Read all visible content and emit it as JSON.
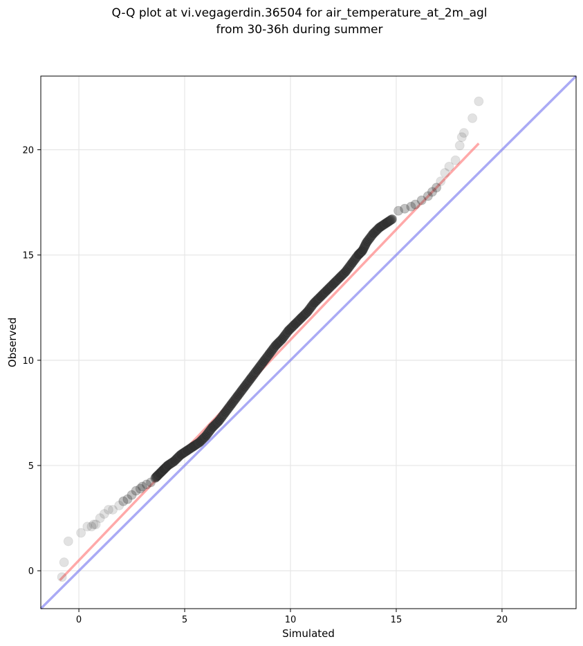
{
  "chart_data": {
    "type": "scatter",
    "title_lines": [
      "Q-Q plot at vi.vegagerdin.36504 for air_temperature_at_2m_agl",
      "from 30-36h during summer"
    ],
    "xlabel": "Simulated",
    "ylabel": "Observed",
    "xlim": [
      -1.8,
      23.5
    ],
    "ylim": [
      -1.8,
      23.5
    ],
    "xticks": [
      0,
      5,
      10,
      15,
      20
    ],
    "yticks": [
      0,
      5,
      10,
      15,
      20
    ],
    "grid": true,
    "colors": {
      "points": "#333333",
      "fit_line": "#ff7b7b",
      "identity_line": "#7d7df0",
      "fit_dark": "#8b0000"
    },
    "identity_line": {
      "from": [
        -1.8,
        -1.8
      ],
      "to": [
        23.5,
        23.5
      ]
    },
    "fit_line": {
      "from": [
        -0.9,
        -0.45
      ],
      "to": [
        18.9,
        20.3
      ]
    },
    "series": [
      {
        "x": [
          -0.8,
          -0.7,
          -0.5,
          0.1,
          0.4,
          0.6,
          0.7,
          0.8,
          1.0,
          1.2,
          1.4,
          1.6,
          1.9,
          2.1,
          2.3,
          2.5,
          2.7,
          2.9,
          3.0,
          3.2,
          3.4,
          3.6,
          3.8,
          4.0,
          4.2,
          4.5,
          4.8,
          5.1,
          5.4,
          5.7,
          6.0,
          6.3,
          6.6,
          6.9,
          7.2,
          7.5,
          7.8,
          8.1,
          8.4,
          8.7,
          9.0,
          9.3,
          9.6,
          9.9,
          10.2,
          10.5,
          10.8,
          11.1,
          11.4,
          11.7,
          12.0,
          12.3,
          12.6,
          12.9,
          13.2,
          13.4,
          13.6,
          13.9,
          14.2,
          14.5,
          14.8,
          15.1,
          15.4,
          15.7,
          15.9,
          16.2,
          16.5,
          16.7,
          16.9,
          17.1,
          17.3,
          17.5,
          17.8,
          18.0,
          18.1,
          18.2,
          18.6,
          18.9
        ],
        "y": [
          -0.3,
          0.4,
          1.4,
          1.8,
          2.1,
          2.1,
          2.2,
          2.2,
          2.5,
          2.7,
          2.9,
          2.9,
          3.1,
          3.3,
          3.4,
          3.6,
          3.8,
          3.9,
          4.0,
          4.1,
          4.2,
          4.4,
          4.6,
          4.8,
          5.0,
          5.2,
          5.5,
          5.7,
          5.9,
          6.1,
          6.4,
          6.8,
          7.1,
          7.5,
          7.9,
          8.3,
          8.7,
          9.1,
          9.5,
          9.9,
          10.3,
          10.7,
          11.0,
          11.4,
          11.7,
          12.0,
          12.3,
          12.7,
          13.0,
          13.3,
          13.6,
          13.9,
          14.2,
          14.6,
          15.0,
          15.2,
          15.6,
          16.0,
          16.3,
          16.5,
          16.7,
          17.1,
          17.2,
          17.3,
          17.4,
          17.6,
          17.8,
          18.0,
          18.2,
          18.5,
          18.9,
          19.2,
          19.5,
          20.2,
          20.6,
          20.8,
          21.5,
          22.3
        ]
      }
    ]
  }
}
